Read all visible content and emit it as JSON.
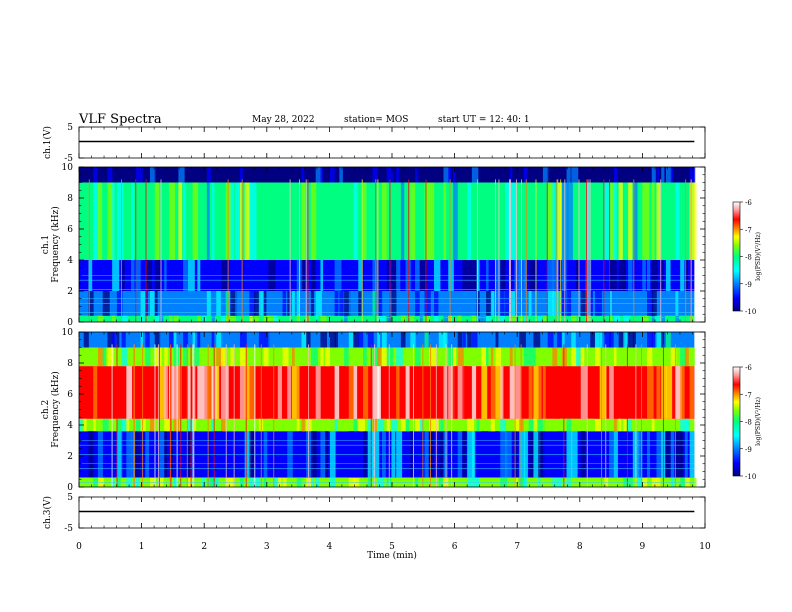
{
  "header": {
    "title": "VLF Spectra",
    "date": "May 28, 2022",
    "station": "station= MOS",
    "start": "start  UT  =   12: 40: 1"
  },
  "chart_data": [
    {
      "type": "line",
      "id": "ch1-waveform",
      "ylabel": "ch.1(V)",
      "ylim": [
        -5,
        5
      ],
      "yticks": [
        "5",
        "-5"
      ],
      "xlim": [
        0,
        10
      ],
      "series": [
        {
          "values_description_free": true,
          "x": [
            0,
            9.83
          ],
          "y": [
            0,
            0
          ]
        }
      ]
    },
    {
      "type": "heatmap",
      "id": "ch1-spectrogram",
      "ylabel": "ch.1\nFrequency (kHz)",
      "ylabel_line1": "ch.1",
      "ylabel_line2": "Frequency (kHz)",
      "ylim": [
        0,
        10
      ],
      "yticks": [
        "0",
        "2",
        "4",
        "6",
        "8",
        "10"
      ],
      "xlim": [
        0,
        10
      ],
      "data_end_min": 9.83,
      "bands": [
        {
          "from": 0,
          "to": 0.4,
          "level": -8.5
        },
        {
          "from": 0.4,
          "to": 2.0,
          "level": -9.3
        },
        {
          "from": 2.0,
          "to": 4.0,
          "level": -9.5
        },
        {
          "from": 4.0,
          "to": 9.0,
          "level": -8.3
        },
        {
          "from": 9.0,
          "to": 10.0,
          "level": -10
        }
      ],
      "colorbar": {
        "label": "log(PSD)(V²/Hz)",
        "ticks": [
          "-6",
          "-7",
          "-8",
          "-9",
          "-10"
        ],
        "range": [
          -10,
          -6
        ]
      }
    },
    {
      "type": "heatmap",
      "id": "ch2-spectrogram",
      "ylabel_line1": "ch.2",
      "ylabel_line2": "Frequency (kHz)",
      "ylim": [
        0,
        10
      ],
      "yticks": [
        "0",
        "2",
        "4",
        "6",
        "8",
        "10"
      ],
      "xlim": [
        0,
        10
      ],
      "data_end_min": 9.83,
      "bands": [
        {
          "from": 0,
          "to": 0.6,
          "level": -8.2
        },
        {
          "from": 0.6,
          "to": 3.6,
          "level": -9.4
        },
        {
          "from": 3.6,
          "to": 4.4,
          "level": -8.0
        },
        {
          "from": 4.4,
          "to": 7.8,
          "level": -6.9
        },
        {
          "from": 7.8,
          "to": 9.0,
          "level": -8.0
        },
        {
          "from": 9.0,
          "to": 10.0,
          "level": -9.3
        }
      ],
      "colorbar": {
        "label": "log(PSD)(V²/Hz)",
        "ticks": [
          "-6",
          "-7",
          "-8",
          "-9",
          "-10"
        ],
        "range": [
          -10,
          -6
        ]
      }
    },
    {
      "type": "line",
      "id": "ch3-waveform",
      "ylabel": "ch.3(V)",
      "ylim": [
        -5,
        5
      ],
      "yticks": [
        "5",
        "-5"
      ],
      "xlim": [
        0,
        10
      ],
      "xlabel": "Time (min)",
      "xticks": [
        "0",
        "1",
        "2",
        "3",
        "4",
        "5",
        "6",
        "7",
        "8",
        "9",
        "10"
      ],
      "series": [
        {
          "x": [
            0,
            9.83
          ],
          "y": [
            0,
            0
          ]
        }
      ]
    }
  ],
  "colors": {
    "colormap": [
      "#000080",
      "#0000ff",
      "#0080ff",
      "#00ffff",
      "#00ff80",
      "#80ff00",
      "#ffff00",
      "#ff8000",
      "#ff0000",
      "#ffc0c0",
      "#ffffff"
    ]
  }
}
